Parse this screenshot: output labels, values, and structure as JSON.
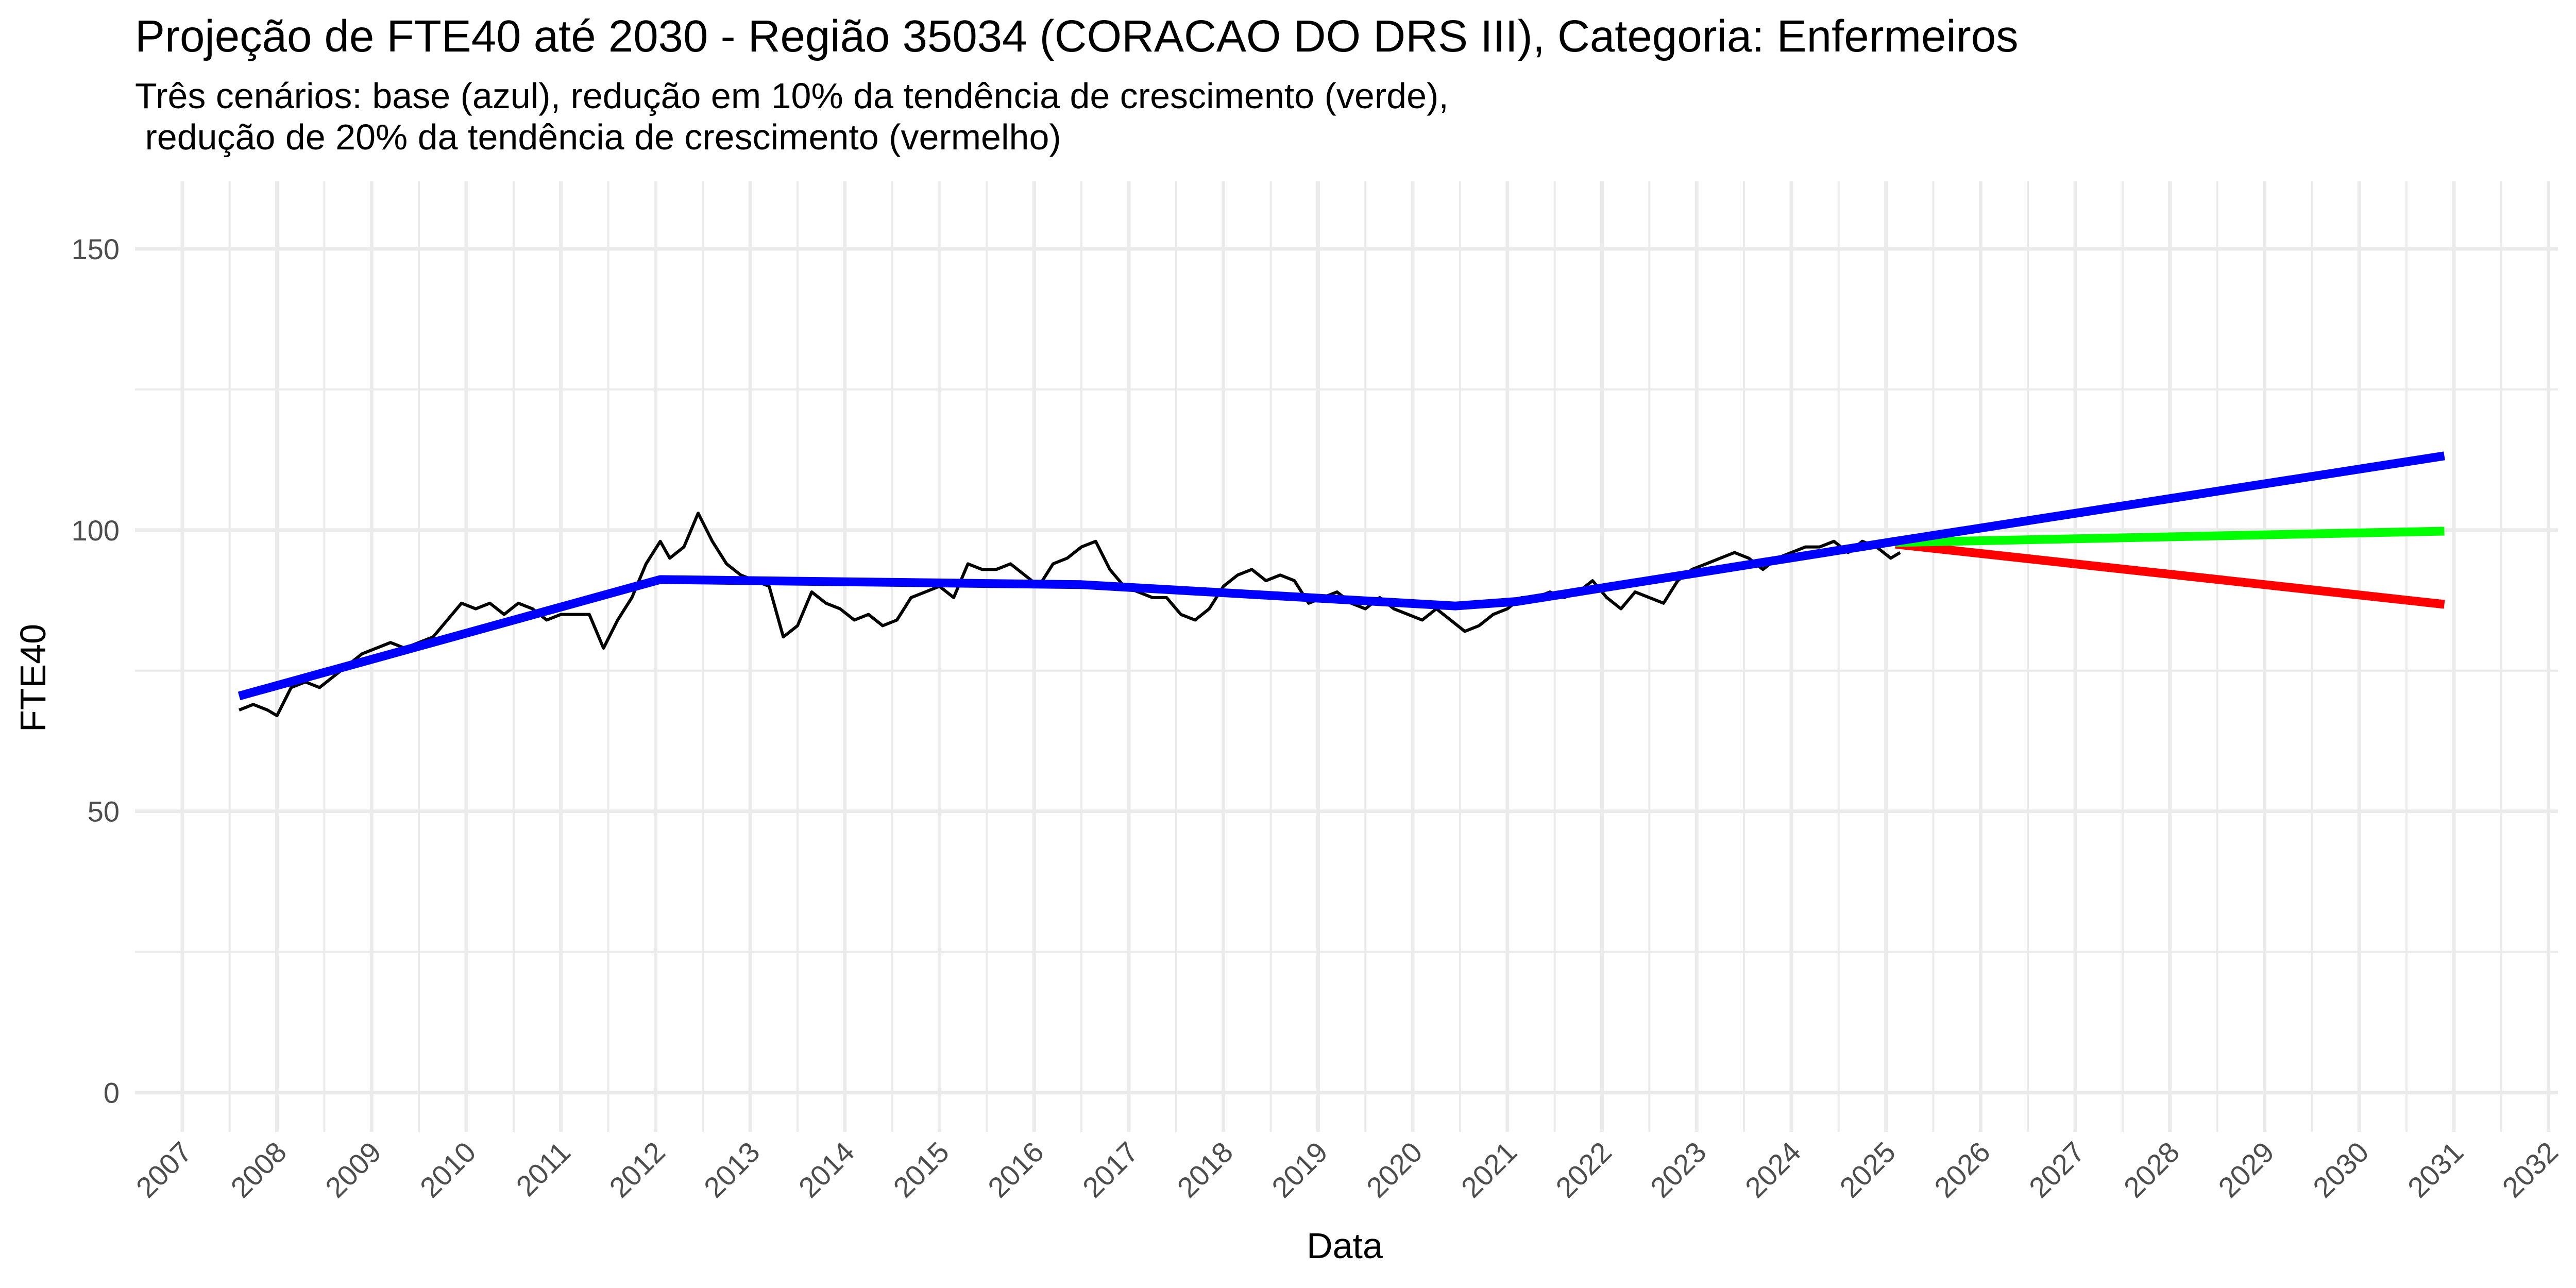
{
  "chart_data": {
    "type": "line",
    "title": "Projeção de FTE40 até 2030 - Região 35034 (CORACAO DO DRS III), Categoria: Enfermeiros",
    "subtitle_lines": [
      "Três cenários: base (azul), redução em 10% da tendência de crescimento (verde),",
      " redução de 20% da tendência de crescimento (vermelho)"
    ],
    "xlabel": "Data",
    "ylabel": "FTE40",
    "xlim": [
      2006.5,
      2032.1
    ],
    "ylim": [
      -7,
      162
    ],
    "x_ticks": [
      {
        "value": 2007,
        "label": "2007"
      },
      {
        "value": 2008,
        "label": "2008"
      },
      {
        "value": 2009,
        "label": "2009"
      },
      {
        "value": 2010,
        "label": "2010"
      },
      {
        "value": 2011,
        "label": "2011"
      },
      {
        "value": 2012,
        "label": "2012"
      },
      {
        "value": 2013,
        "label": "2013"
      },
      {
        "value": 2014,
        "label": "2014"
      },
      {
        "value": 2015,
        "label": "2015"
      },
      {
        "value": 2016,
        "label": "2016"
      },
      {
        "value": 2017,
        "label": "2017"
      },
      {
        "value": 2018,
        "label": "2018"
      },
      {
        "value": 2019,
        "label": "2019"
      },
      {
        "value": 2020,
        "label": "2020"
      },
      {
        "value": 2021,
        "label": "2021"
      },
      {
        "value": 2022,
        "label": "2022"
      },
      {
        "value": 2023,
        "label": "2023"
      },
      {
        "value": 2024,
        "label": "2024"
      },
      {
        "value": 2025,
        "label": "2025"
      },
      {
        "value": 2026,
        "label": "2026"
      },
      {
        "value": 2027,
        "label": "2027"
      },
      {
        "value": 2028,
        "label": "2028"
      },
      {
        "value": 2029,
        "label": "2029"
      },
      {
        "value": 2030,
        "label": "2030"
      },
      {
        "value": 2031,
        "label": "2031"
      },
      {
        "value": 2032,
        "label": "2032"
      }
    ],
    "y_ticks": [
      {
        "value": 0,
        "label": "0"
      },
      {
        "value": 50,
        "label": "50"
      },
      {
        "value": 100,
        "label": "100"
      },
      {
        "value": 150,
        "label": "150"
      }
    ],
    "y_minor_gridlines": [
      25,
      75,
      125
    ],
    "grid": true,
    "background": "#ffffff",
    "gridline_color": "#ebebeb",
    "series": [
      {
        "color": "#000000",
        "x": [
          2007.6,
          2007.75,
          2007.9,
          2008.0,
          2008.15,
          2008.3,
          2008.45,
          2008.6,
          2008.75,
          2008.9,
          2009.05,
          2009.2,
          2009.35,
          2009.5,
          2009.65,
          2009.8,
          2009.95,
          2010.1,
          2010.25,
          2010.4,
          2010.55,
          2010.7,
          2010.85,
          2011.0,
          2011.15,
          2011.3,
          2011.45,
          2011.6,
          2011.75,
          2011.9,
          2012.05,
          2012.15,
          2012.3,
          2012.45,
          2012.6,
          2012.75,
          2012.9,
          2013.05,
          2013.2,
          2013.35,
          2013.5,
          2013.65,
          2013.8,
          2013.95,
          2014.1,
          2014.25,
          2014.4,
          2014.55,
          2014.7,
          2014.85,
          2015.0,
          2015.15,
          2015.3,
          2015.45,
          2015.6,
          2015.75,
          2015.9,
          2016.05,
          2016.2,
          2016.35,
          2016.5,
          2016.65,
          2016.8,
          2016.95,
          2017.1,
          2017.25,
          2017.4,
          2017.55,
          2017.7,
          2017.85,
          2018.0,
          2018.15,
          2018.3,
          2018.45,
          2018.6,
          2018.75,
          2018.9,
          2019.05,
          2019.2,
          2019.35,
          2019.5,
          2019.65,
          2019.8,
          2019.95,
          2020.1,
          2020.25,
          2020.4,
          2020.55,
          2020.7,
          2020.85,
          2021.0,
          2021.15,
          2021.3,
          2021.45,
          2021.6,
          2021.75,
          2021.9,
          2022.05,
          2022.2,
          2022.35,
          2022.5,
          2022.65,
          2022.8,
          2022.95,
          2023.1,
          2023.25,
          2023.4,
          2023.55,
          2023.7,
          2023.85,
          2024.0,
          2024.15,
          2024.3,
          2024.45,
          2024.6,
          2024.75,
          2024.9,
          2025.05,
          2025.15
        ],
        "values": [
          68,
          69,
          68,
          67,
          72,
          73,
          72,
          74,
          76,
          78,
          79,
          80,
          79,
          80,
          81,
          84,
          87,
          86,
          87,
          85,
          87,
          86,
          84,
          85,
          85,
          85,
          79,
          84,
          88,
          94,
          98,
          95,
          97,
          103,
          98,
          94,
          92,
          91,
          90,
          81,
          83,
          89,
          87,
          86,
          84,
          85,
          83,
          84,
          88,
          89,
          90,
          88,
          94,
          93,
          93,
          94,
          92,
          90,
          94,
          95,
          97,
          98,
          93,
          90,
          89,
          88,
          88,
          85,
          84,
          86,
          90,
          92,
          93,
          91,
          92,
          91,
          87,
          88,
          89,
          87,
          86,
          88,
          86,
          85,
          84,
          86,
          84,
          82,
          83,
          85,
          86,
          88,
          88,
          89,
          88,
          89,
          91,
          88,
          86,
          89,
          88,
          87,
          91,
          93,
          94,
          95,
          96,
          95,
          93,
          95,
          96,
          97,
          97,
          98,
          96,
          98,
          97,
          95,
          96
        ]
      },
      {
        "color": "#ff0000",
        "x": [
          2025.1,
          2030.9
        ],
        "values": [
          97.5,
          86.8
        ]
      },
      {
        "color": "#00ff00",
        "x": [
          2025.1,
          2030.9
        ],
        "values": [
          97.8,
          99.8
        ]
      },
      {
        "color": "#0000ff",
        "x": [
          2007.6,
          2012.05,
          2016.5,
          2020.45,
          2021.1,
          2025.1,
          2030.9
        ],
        "values": [
          70.5,
          91.2,
          90.3,
          86.5,
          87.3,
          98.0,
          113.2
        ]
      }
    ]
  }
}
